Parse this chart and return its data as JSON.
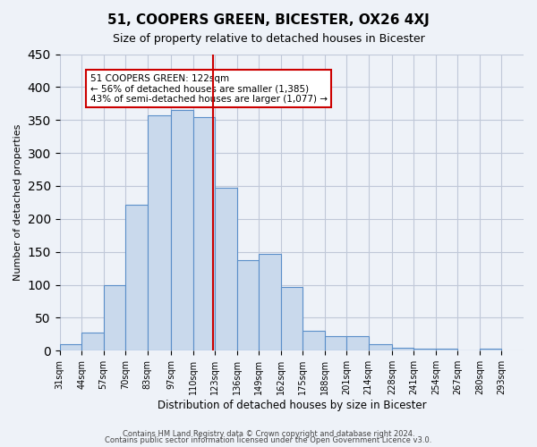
{
  "title": "51, COOPERS GREEN, BICESTER, OX26 4XJ",
  "subtitle": "Size of property relative to detached houses in Bicester",
  "xlabel": "Distribution of detached houses by size in Bicester",
  "ylabel": "Number of detached properties",
  "bin_labels": [
    "31sqm",
    "44sqm",
    "57sqm",
    "70sqm",
    "83sqm",
    "97sqm",
    "110sqm",
    "123sqm",
    "136sqm",
    "149sqm",
    "162sqm",
    "175sqm",
    "188sqm",
    "201sqm",
    "214sqm",
    "228sqm",
    "241sqm",
    "254sqm",
    "267sqm",
    "280sqm",
    "293sqm"
  ],
  "bin_edges": [
    31,
    44,
    57,
    70,
    83,
    97,
    110,
    123,
    136,
    149,
    162,
    175,
    188,
    201,
    214,
    228,
    241,
    254,
    267,
    280,
    293
  ],
  "bar_heights": [
    10,
    27,
    100,
    222,
    357,
    365,
    355,
    247,
    138,
    147,
    97,
    30,
    22,
    22,
    10,
    5,
    3,
    3,
    0,
    3
  ],
  "bar_color": "#c9d9ec",
  "bar_edge_color": "#5b8fc9",
  "vline_x": 122,
  "vline_color": "#cc0000",
  "annotation_title": "51 COOPERS GREEN: 122sqm",
  "annotation_line1": "← 56% of detached houses are smaller (1,385)",
  "annotation_line2": "43% of semi-detached houses are larger (1,077) →",
  "annotation_box_color": "#cc0000",
  "annotation_text_color": "#000000",
  "annotation_bg": "#ffffff",
  "ylim": [
    0,
    450
  ],
  "yticks": [
    0,
    50,
    100,
    150,
    200,
    250,
    300,
    350,
    400,
    450
  ],
  "grid_color": "#c0c8d8",
  "bg_color": "#eef2f8",
  "footer1": "Contains HM Land Registry data © Crown copyright and database right 2024.",
  "footer2": "Contains public sector information licensed under the Open Government Licence v3.0."
}
